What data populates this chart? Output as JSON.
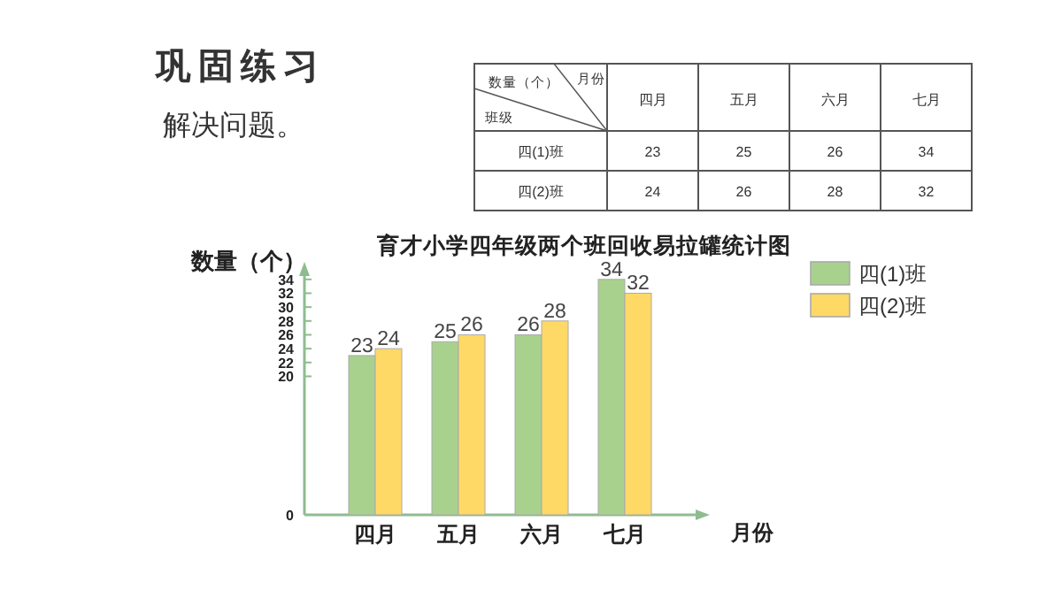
{
  "chart_data": {
    "type": "bar",
    "title": "育才小学四年级两个班回收易拉罐统计图",
    "xlabel": "月份",
    "ylabel": "数量（个）",
    "categories": [
      "四月",
      "五月",
      "六月",
      "七月"
    ],
    "series": [
      {
        "name": "四(1)班",
        "color": "#a9d18e",
        "values": [
          23,
          25,
          26,
          34
        ]
      },
      {
        "name": "四(2)班",
        "color": "#ffd966",
        "values": [
          24,
          26,
          28,
          32
        ]
      }
    ],
    "ylim": [
      0,
      35
    ],
    "yticks": [
      0,
      20,
      22,
      24,
      26,
      28,
      30,
      32,
      34
    ],
    "data_labels": true,
    "legend": "top right",
    "grid": false,
    "annotations": [
      "巩固练习",
      "解决问题。",
      "数量（个）",
      "月份",
      "班级",
      "23",
      "25",
      "26",
      "34",
      "24",
      "26",
      "28",
      "32"
    ]
  }
}
